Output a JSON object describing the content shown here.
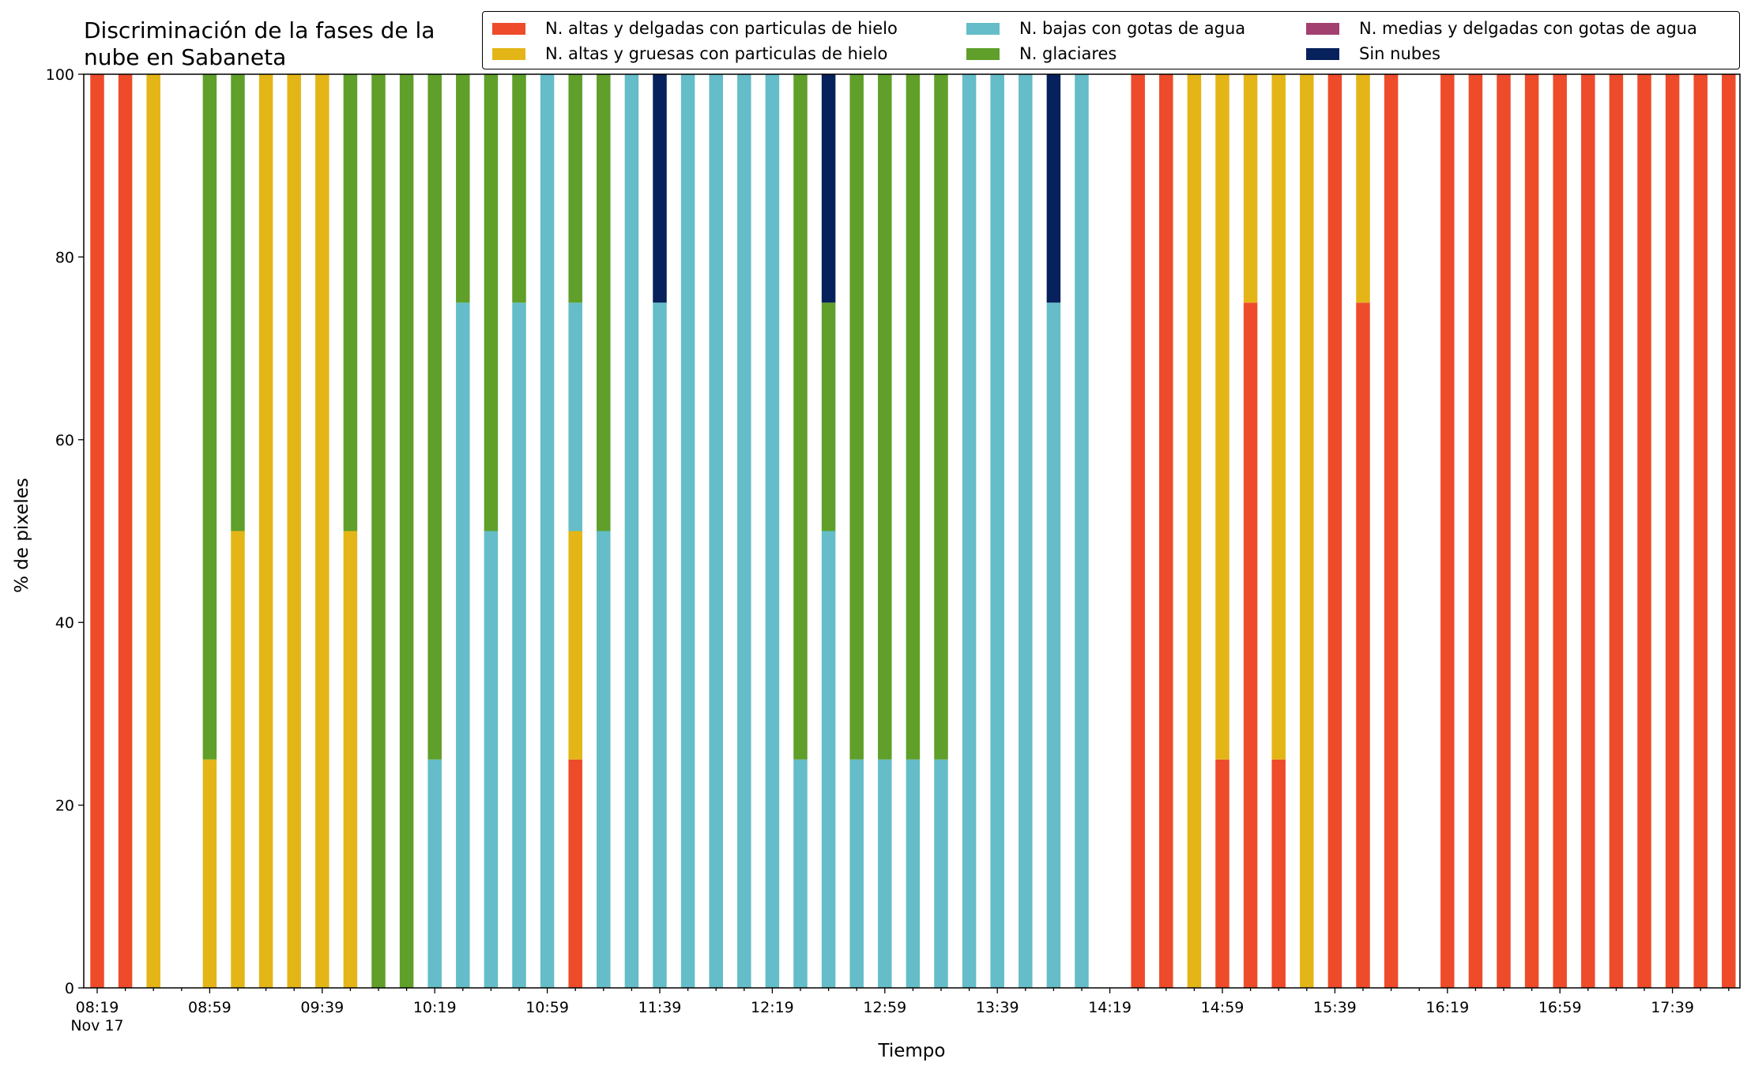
{
  "chart_data": {
    "type": "bar",
    "stacked": true,
    "title": "Discriminación de la fases de la nube en Sabaneta",
    "xlabel": "Tiempo",
    "ylabel": "% de pixeles",
    "ylim": [
      0,
      100
    ],
    "yticks": [
      0,
      20,
      40,
      60,
      80,
      100
    ],
    "xticks": [
      "08:19\nNov 17",
      "08:59",
      "09:39",
      "10:19",
      "10:59",
      "11:39",
      "12:19",
      "12:59",
      "13:39",
      "14:19",
      "14:59",
      "15:39",
      "16:19",
      "16:59",
      "17:39"
    ],
    "grid": false,
    "legend_position": "top-right",
    "x": [
      "08:19",
      "08:29",
      "08:39",
      "08:49",
      "08:59",
      "09:09",
      "09:19",
      "09:29",
      "09:39",
      "09:49",
      "09:59",
      "10:09",
      "10:19",
      "10:29",
      "10:39",
      "10:49",
      "10:59",
      "11:09",
      "11:19",
      "11:29",
      "11:39",
      "11:49",
      "11:59",
      "12:09",
      "12:19",
      "12:29",
      "12:39",
      "12:49",
      "12:59",
      "13:09",
      "13:19",
      "13:29",
      "13:39",
      "13:49",
      "13:59",
      "14:09",
      "14:19",
      "14:29",
      "14:39",
      "14:49",
      "14:59",
      "15:09",
      "15:19",
      "15:29",
      "15:39",
      "15:49",
      "15:59",
      "16:09",
      "16:19",
      "16:29",
      "16:39",
      "16:49",
      "16:59",
      "17:09",
      "17:19",
      "17:29",
      "17:39",
      "17:49",
      "17:59"
    ],
    "series": [
      {
        "name": "N. altas y delgadas con particulas de hielo",
        "color": "#ee4b2b",
        "values": [
          100,
          100,
          0,
          0,
          0,
          0,
          0,
          0,
          0,
          0,
          0,
          0,
          0,
          0,
          0,
          0,
          0,
          25,
          0,
          0,
          0,
          0,
          0,
          0,
          0,
          0,
          0,
          0,
          0,
          0,
          0,
          0,
          0,
          0,
          0,
          0,
          0,
          100,
          100,
          0,
          25,
          75,
          25,
          0,
          100,
          75,
          100,
          0,
          100,
          100,
          100,
          100,
          100,
          100,
          100,
          100,
          100,
          100,
          100
        ]
      },
      {
        "name": "N. altas y gruesas con particulas de hielo",
        "color": "#e4b516",
        "values": [
          0,
          0,
          100,
          0,
          25,
          50,
          100,
          100,
          100,
          50,
          0,
          0,
          0,
          0,
          0,
          0,
          0,
          25,
          0,
          0,
          0,
          0,
          0,
          0,
          0,
          0,
          0,
          0,
          0,
          0,
          0,
          0,
          0,
          0,
          0,
          0,
          0,
          0,
          0,
          100,
          75,
          25,
          75,
          100,
          0,
          25,
          0,
          0,
          0,
          0,
          0,
          0,
          0,
          0,
          0,
          0,
          0,
          0,
          0
        ]
      },
      {
        "name": "N. bajas con gotas de agua",
        "color": "#64bdc8",
        "values": [
          0,
          0,
          0,
          0,
          0,
          0,
          0,
          0,
          0,
          0,
          0,
          0,
          25,
          75,
          50,
          75,
          100,
          25,
          50,
          100,
          75,
          100,
          100,
          100,
          100,
          25,
          50,
          25,
          25,
          25,
          25,
          100,
          100,
          100,
          75,
          100,
          0,
          0,
          0,
          0,
          0,
          0,
          0,
          0,
          0,
          0,
          0,
          0,
          0,
          0,
          0,
          0,
          0,
          0,
          0,
          0,
          0,
          0,
          0
        ]
      },
      {
        "name": "N. glaciares",
        "color": "#5f9f2a",
        "values": [
          0,
          0,
          0,
          0,
          75,
          50,
          0,
          0,
          0,
          50,
          100,
          100,
          75,
          25,
          50,
          25,
          0,
          25,
          50,
          0,
          0,
          0,
          0,
          0,
          0,
          75,
          25,
          75,
          75,
          75,
          75,
          0,
          0,
          0,
          0,
          0,
          0,
          0,
          0,
          0,
          0,
          0,
          0,
          0,
          0,
          0,
          0,
          0,
          0,
          0,
          0,
          0,
          0,
          0,
          0,
          0,
          0,
          0,
          0
        ]
      },
      {
        "name": "N. medias y delgadas con gotas de agua",
        "color": "#a2416f",
        "values": [
          0,
          0,
          0,
          0,
          0,
          0,
          0,
          0,
          0,
          0,
          0,
          0,
          0,
          0,
          0,
          0,
          0,
          0,
          0,
          0,
          0,
          0,
          0,
          0,
          0,
          0,
          0,
          0,
          0,
          0,
          0,
          0,
          0,
          0,
          0,
          0,
          0,
          0,
          0,
          0,
          0,
          0,
          0,
          0,
          0,
          0,
          0,
          0,
          0,
          0,
          0,
          0,
          0,
          0,
          0,
          0,
          0,
          0,
          0
        ]
      },
      {
        "name": "Sin nubes",
        "color": "#07215c",
        "values": [
          0,
          0,
          0,
          0,
          0,
          0,
          0,
          0,
          0,
          0,
          0,
          0,
          0,
          0,
          0,
          0,
          0,
          0,
          0,
          0,
          25,
          0,
          0,
          0,
          0,
          0,
          25,
          0,
          0,
          0,
          0,
          0,
          0,
          0,
          25,
          0,
          0,
          0,
          0,
          0,
          0,
          0,
          0,
          0,
          0,
          0,
          0,
          0,
          0,
          0,
          0,
          0,
          0,
          0,
          0,
          0,
          0,
          0,
          0
        ]
      }
    ]
  }
}
